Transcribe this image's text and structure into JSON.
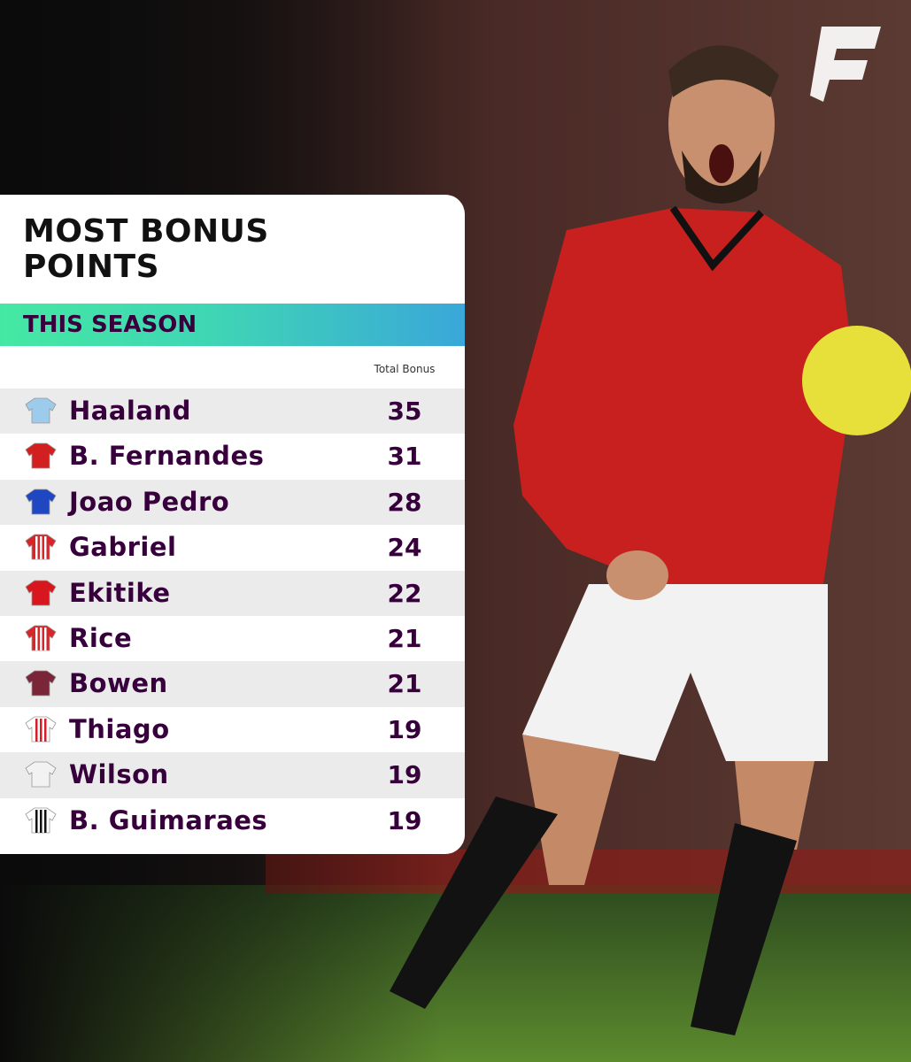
{
  "header": {
    "title": "MOST BONUS POINTS",
    "subtitle": "THIS SEASON"
  },
  "table": {
    "column_header": "Total Bonus",
    "rows": [
      {
        "name": "Haaland",
        "value": 35
      },
      {
        "name": "B. Fernandes",
        "value": 31
      },
      {
        "name": "Joao Pedro",
        "value": 28
      },
      {
        "name": "Gabriel",
        "value": 24
      },
      {
        "name": "Ekitike",
        "value": 22
      },
      {
        "name": "Rice",
        "value": 21
      },
      {
        "name": "Bowen",
        "value": 21
      },
      {
        "name": "Thiago",
        "value": 19
      },
      {
        "name": "Wilson",
        "value": 19
      },
      {
        "name": "B. Guimaraes",
        "value": 19
      }
    ]
  }
}
